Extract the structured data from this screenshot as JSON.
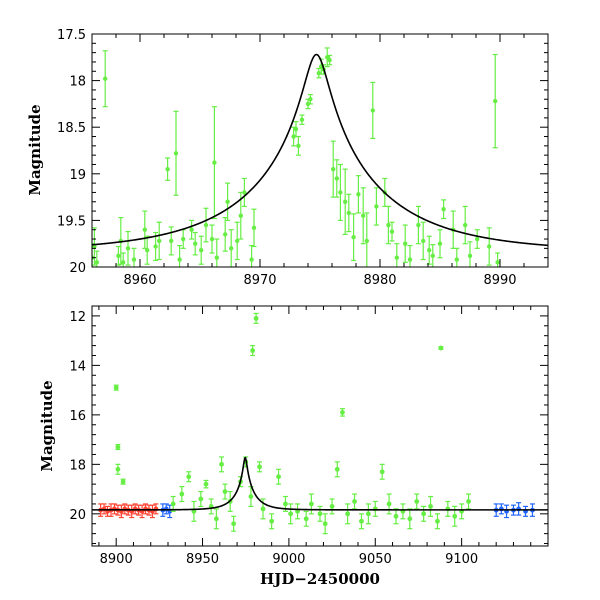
{
  "chart_data": [
    {
      "type": "scatter",
      "panel": "top",
      "xlabel": "",
      "ylabel": "Magnitude",
      "xlim": [
        8956,
        8994
      ],
      "ylim": [
        20,
        17.5
      ],
      "y_inverted": true,
      "xticks": [
        8960,
        8970,
        8980,
        8990
      ],
      "yticks": [
        17.5,
        18,
        18.5,
        19,
        19.5,
        20
      ],
      "ytick_labels": [
        "17.5",
        "18",
        "18.5",
        "19",
        "19.5",
        "20"
      ],
      "model": {
        "peak_x": 8974.7,
        "peak_mag": 17.72,
        "baseline_mag": 19.84,
        "u0": 0.085,
        "tE": 11.0
      },
      "series": [
        {
          "color": "#66ee44",
          "points": [
            [
              8956.0,
              19.9,
              0.15
            ],
            [
              8956.2,
              19.78,
              0.2
            ],
            [
              8956.4,
              19.95,
              0.12
            ],
            [
              8957.1,
              17.98,
              0.3
            ],
            [
              8958.2,
              19.88,
              0.1
            ],
            [
              8958.4,
              19.72,
              0.25
            ],
            [
              8958.6,
              19.95,
              0.1
            ],
            [
              8959.0,
              19.8,
              0.18
            ],
            [
              8959.5,
              19.92,
              0.12
            ],
            [
              8960.4,
              19.6,
              0.2
            ],
            [
              8960.6,
              19.82,
              0.15
            ],
            [
              8961.3,
              19.78,
              0.15
            ],
            [
              8961.6,
              19.72,
              0.2
            ],
            [
              8962.3,
              18.95,
              0.12
            ],
            [
              8962.6,
              19.72,
              0.15
            ],
            [
              8963.0,
              18.78,
              0.45
            ],
            [
              8963.3,
              19.92,
              0.15
            ],
            [
              8963.6,
              19.7,
              0.1
            ],
            [
              8964.3,
              19.6,
              0.1
            ],
            [
              8964.6,
              19.75,
              0.12
            ],
            [
              8965.1,
              19.82,
              0.15
            ],
            [
              8965.5,
              19.55,
              0.18
            ],
            [
              8966.0,
              19.7,
              0.15
            ],
            [
              8966.2,
              18.88,
              0.6
            ],
            [
              8966.4,
              19.9,
              0.2
            ],
            [
              8967.1,
              19.65,
              0.18
            ],
            [
              8967.3,
              19.3,
              0.2
            ],
            [
              8967.6,
              19.8,
              0.2
            ],
            [
              8968.1,
              19.72,
              0.2
            ],
            [
              8968.4,
              19.45,
              0.25
            ],
            [
              8968.7,
              19.2,
              0.15
            ],
            [
              8969.3,
              19.92,
              0.15
            ],
            [
              8969.5,
              19.58,
              0.2
            ],
            [
              8972.8,
              18.6,
              0.1
            ],
            [
              8973.0,
              18.52,
              0.08
            ],
            [
              8973.2,
              18.7,
              0.1
            ],
            [
              8973.5,
              18.42,
              0.05
            ],
            [
              8974.0,
              18.25,
              0.05
            ],
            [
              8974.2,
              18.2,
              0.05
            ],
            [
              8974.9,
              17.92,
              0.05
            ],
            [
              8975.1,
              17.85,
              0.08
            ],
            [
              8975.3,
              17.88,
              0.05
            ],
            [
              8975.6,
              17.75,
              0.1
            ],
            [
              8975.8,
              17.78,
              0.05
            ],
            [
              8976.1,
              18.95,
              0.3
            ],
            [
              8976.4,
              19.05,
              0.2
            ],
            [
              8976.7,
              19.2,
              0.3
            ],
            [
              8977.1,
              19.3,
              0.35
            ],
            [
              8977.4,
              19.42,
              0.2
            ],
            [
              8977.8,
              19.68,
              0.25
            ],
            [
              8978.2,
              19.22,
              0.2
            ],
            [
              8978.6,
              19.45,
              0.3
            ],
            [
              8978.9,
              19.72,
              0.3
            ],
            [
              8979.4,
              18.32,
              0.3
            ],
            [
              8979.7,
              19.35,
              0.2
            ],
            [
              8980.4,
              19.2,
              0.15
            ],
            [
              8980.7,
              19.55,
              0.2
            ],
            [
              8981.0,
              19.62,
              0.1
            ],
            [
              8981.4,
              19.9,
              0.15
            ],
            [
              8982.1,
              19.75,
              0.2
            ],
            [
              8982.5,
              19.92,
              0.15
            ],
            [
              8983.2,
              19.55,
              0.2
            ],
            [
              8983.6,
              19.72,
              0.2
            ],
            [
              8984.1,
              19.82,
              0.15
            ],
            [
              8984.4,
              19.88,
              0.12
            ],
            [
              8985.0,
              19.75,
              0.15
            ],
            [
              8985.3,
              19.38,
              0.1
            ],
            [
              8986.1,
              19.6,
              0.2
            ],
            [
              8986.4,
              19.92,
              0.12
            ],
            [
              8987.1,
              19.55,
              0.2
            ],
            [
              8987.5,
              19.88,
              0.15
            ],
            [
              8988.1,
              19.7,
              0.1
            ],
            [
              8989.1,
              19.78,
              0.2
            ],
            [
              8989.6,
              18.22,
              0.5
            ],
            [
              8989.8,
              19.95,
              0.1
            ]
          ]
        }
      ]
    },
    {
      "type": "scatter",
      "panel": "bottom",
      "xlabel": "HJD−2450000",
      "ylabel": "Magnitude",
      "xlim": [
        8886,
        9150
      ],
      "ylim": [
        21.3,
        11.6
      ],
      "y_inverted": true,
      "xticks": [
        8900,
        8950,
        9000,
        9050,
        9100
      ],
      "yticks": [
        12,
        14,
        16,
        18,
        20
      ],
      "ytick_labels": [
        "12",
        "14",
        "16",
        "18",
        "20"
      ],
      "model": {
        "peak_x": 8974.7,
        "peak_mag": 17.72,
        "baseline_mag": 19.84,
        "u0": 0.085,
        "tE": 11.0
      },
      "series": [
        {
          "color": "#ff4433",
          "points": [
            [
              8891,
              19.85,
              0.25
            ],
            [
              8893,
              19.8,
              0.2
            ],
            [
              8895,
              19.9,
              0.2
            ],
            [
              8897,
              19.85,
              0.25
            ],
            [
              8899,
              19.8,
              0.2
            ],
            [
              8901,
              19.85,
              0.2
            ],
            [
              8903,
              19.9,
              0.25
            ],
            [
              8905,
              19.8,
              0.2
            ],
            [
              8907,
              19.85,
              0.2
            ],
            [
              8909,
              19.9,
              0.25
            ],
            [
              8911,
              19.8,
              0.2
            ],
            [
              8913,
              19.85,
              0.2
            ],
            [
              8915,
              19.9,
              0.25
            ],
            [
              8917,
              19.8,
              0.2
            ],
            [
              8919,
              19.85,
              0.2
            ],
            [
              8921,
              19.9,
              0.25
            ],
            [
              8923,
              19.8,
              0.2
            ]
          ]
        },
        {
          "color": "#2266ff",
          "points": [
            [
              8927,
              19.85,
              0.25
            ],
            [
              8929,
              19.8,
              0.2
            ],
            [
              8931,
              19.9,
              0.25
            ],
            [
              9120,
              19.85,
              0.25
            ],
            [
              9123,
              19.8,
              0.2
            ],
            [
              9126,
              19.9,
              0.25
            ],
            [
              9130,
              19.85,
              0.2
            ],
            [
              9133,
              19.8,
              0.25
            ],
            [
              9137,
              19.9,
              0.2
            ],
            [
              9141,
              19.85,
              0.25
            ]
          ]
        },
        {
          "color": "#66ee44",
          "points": [
            [
              8900,
              14.9,
              0.1
            ],
            [
              8901,
              17.3,
              0.1
            ],
            [
              8901,
              18.2,
              0.2
            ],
            [
              8904,
              18.7,
              0.1
            ],
            [
              8933,
              19.6,
              0.3
            ],
            [
              8938,
              19.2,
              0.3
            ],
            [
              8942,
              18.5,
              0.2
            ],
            [
              8945,
              19.9,
              0.4
            ],
            [
              8949,
              19.4,
              0.3
            ],
            [
              8952,
              18.8,
              0.15
            ],
            [
              8955,
              19.7,
              0.3
            ],
            [
              8958,
              20.2,
              0.4
            ],
            [
              8961,
              18.0,
              0.3
            ],
            [
              8963,
              19.1,
              0.3
            ],
            [
              8966,
              19.5,
              0.4
            ],
            [
              8968,
              20.4,
              0.3
            ],
            [
              8972,
              18.7,
              0.2
            ],
            [
              8975,
              17.9,
              0.2
            ],
            [
              8978,
              19.3,
              0.4
            ],
            [
              8979,
              13.4,
              0.2
            ],
            [
              8981,
              12.1,
              0.2
            ],
            [
              8983,
              18.1,
              0.2
            ],
            [
              8985,
              19.8,
              0.4
            ],
            [
              8990,
              20.3,
              0.3
            ],
            [
              8994,
              18.5,
              0.3
            ],
            [
              8998,
              19.6,
              0.3
            ],
            [
              9001,
              20.0,
              0.4
            ],
            [
              9005,
              19.9,
              0.3
            ],
            [
              9010,
              20.2,
              0.3
            ],
            [
              9013,
              19.6,
              0.4
            ],
            [
              9018,
              20.0,
              0.3
            ],
            [
              9021,
              20.4,
              0.4
            ],
            [
              9025,
              19.7,
              0.3
            ],
            [
              9028,
              18.2,
              0.3
            ],
            [
              9031,
              15.9,
              0.15
            ],
            [
              9034,
              20.0,
              0.4
            ],
            [
              9038,
              19.5,
              0.3
            ],
            [
              9042,
              20.3,
              0.3
            ],
            [
              9046,
              20.0,
              0.4
            ],
            [
              9050,
              19.8,
              0.3
            ],
            [
              9054,
              18.3,
              0.3
            ],
            [
              9058,
              19.6,
              0.4
            ],
            [
              9062,
              20.1,
              0.3
            ],
            [
              9066,
              19.9,
              0.3
            ],
            [
              9070,
              20.2,
              0.4
            ],
            [
              9074,
              19.5,
              0.3
            ],
            [
              9078,
              20.0,
              0.3
            ],
            [
              9082,
              19.7,
              0.4
            ],
            [
              9086,
              20.3,
              0.3
            ],
            [
              9088,
              13.3,
              0.05
            ],
            [
              9092,
              19.8,
              0.3
            ],
            [
              9096,
              20.1,
              0.4
            ],
            [
              9100,
              19.9,
              0.3
            ],
            [
              9104,
              19.5,
              0.3
            ]
          ]
        }
      ]
    }
  ]
}
